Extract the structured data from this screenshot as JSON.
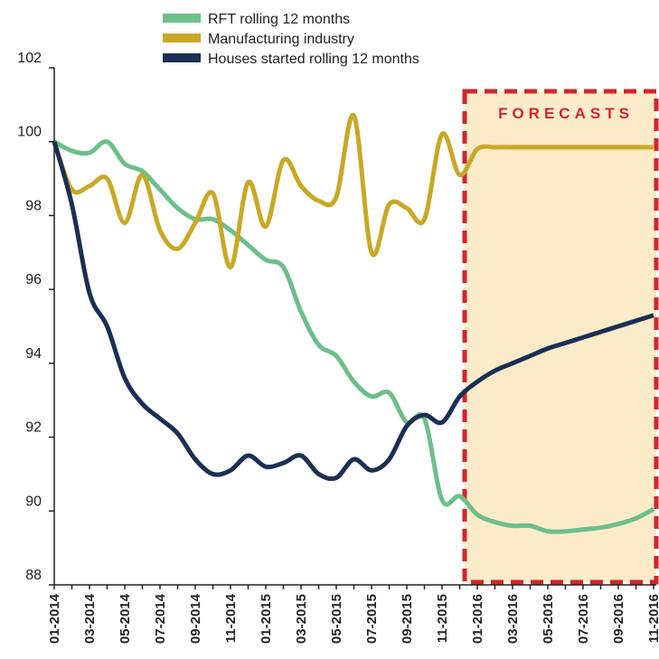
{
  "chart_data": {
    "type": "line",
    "categories": [
      "01-2014",
      null,
      "03-2014",
      null,
      "05-2014",
      null,
      "07-2014",
      null,
      "09-2014",
      null,
      "11-2014",
      null,
      "01-2015",
      null,
      "03-2015",
      null,
      "05-2015",
      null,
      "07-2015",
      null,
      "09-2015",
      null,
      "11-2015",
      null,
      "01-2016",
      null,
      "03-2016",
      null,
      "05-2016",
      null,
      "07-2016",
      null,
      "09-2016",
      null,
      "11-2016"
    ],
    "series": [
      {
        "name": "RFT rolling 12 months",
        "color": "#6cbf8a",
        "values": [
          100,
          99.75,
          99.7,
          100.0,
          99.4,
          99.2,
          98.7,
          98.2,
          97.9,
          97.9,
          97.6,
          97.2,
          96.8,
          96.6,
          95.4,
          94.5,
          94.2,
          93.5,
          93.1,
          93.2,
          92.4,
          92.5,
          90.3,
          90.4,
          89.9,
          89.7,
          89.6,
          89.6,
          89.45,
          89.45,
          89.5,
          89.55,
          89.65,
          89.8,
          90.05
        ]
      },
      {
        "name": "Manufacturing industry",
        "color": "#c9a825",
        "values": [
          100,
          98.7,
          98.8,
          99.0,
          97.8,
          99.1,
          97.6,
          97.1,
          97.8,
          98.6,
          96.6,
          98.9,
          97.7,
          99.5,
          98.8,
          98.4,
          98.5,
          100.7,
          97.0,
          98.3,
          98.2,
          97.9,
          100.2,
          99.1,
          99.8,
          99.85,
          99.85,
          99.85,
          99.85,
          99.85,
          99.85,
          99.85,
          99.85,
          99.85,
          99.85
        ]
      },
      {
        "name": "Houses started rolling 12 months",
        "color": "#1b2f54",
        "values": [
          100,
          98.3,
          95.9,
          95.0,
          93.6,
          92.9,
          92.5,
          92.1,
          91.4,
          91.0,
          91.1,
          91.5,
          91.2,
          91.3,
          91.5,
          91.0,
          90.9,
          91.4,
          91.1,
          91.4,
          92.3,
          92.6,
          92.4,
          93.1,
          93.5,
          93.8,
          94.0,
          94.2,
          94.4,
          94.55,
          94.7,
          94.85,
          95.0,
          95.15,
          95.3
        ]
      }
    ],
    "annotation": "FORECASTS",
    "ylim": [
      88,
      102
    ],
    "yticks": [
      88,
      90,
      92,
      94,
      96,
      98,
      100,
      102
    ],
    "grid": false
  }
}
